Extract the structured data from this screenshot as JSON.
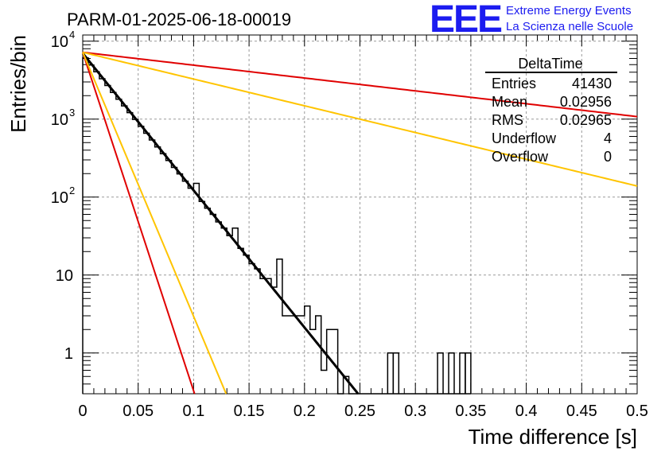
{
  "header": {
    "run_title": "PARM-01-2025-06-18-00019",
    "logo_text": "EEE",
    "logo_line1": "Extreme Energy Events",
    "logo_line2": "La Scienza nelle Scuole"
  },
  "stats_box": {
    "title": "DeltaTime",
    "rows": [
      {
        "label": "Entries",
        "value": "41430"
      },
      {
        "label": "Mean",
        "value": "0.02956"
      },
      {
        "label": "RMS",
        "value": "0.02965"
      },
      {
        "label": "Underflow",
        "value": "4"
      },
      {
        "label": "Overflow",
        "value": "0"
      }
    ]
  },
  "chart_data": {
    "type": "line",
    "title": "PARM-01-2025-06-18-00019",
    "xlabel": "Time difference [s]",
    "ylabel": "Entries/bin",
    "xlim": [
      0,
      0.5
    ],
    "ylim": [
      0.3,
      12000
    ],
    "y_scale": "log",
    "grid": true,
    "x_ticks": [
      {
        "v": 0,
        "label": "0"
      },
      {
        "v": 0.05,
        "label": "0.05"
      },
      {
        "v": 0.1,
        "label": "0.1"
      },
      {
        "v": 0.15,
        "label": "0.15"
      },
      {
        "v": 0.2,
        "label": "0.2"
      },
      {
        "v": 0.25,
        "label": "0.25"
      },
      {
        "v": 0.3,
        "label": "0.3"
      },
      {
        "v": 0.35,
        "label": "0.35"
      },
      {
        "v": 0.4,
        "label": "0.4"
      },
      {
        "v": 0.45,
        "label": "0.45"
      },
      {
        "v": 0.5,
        "label": "0.5"
      }
    ],
    "y_ticks": [
      {
        "v": 1,
        "base": "1",
        "exp": ""
      },
      {
        "v": 10,
        "base": "10",
        "exp": ""
      },
      {
        "v": 100,
        "base": "10",
        "exp": "2"
      },
      {
        "v": 1000,
        "base": "10",
        "exp": "3"
      },
      {
        "v": 10000,
        "base": "10",
        "exp": "4"
      }
    ],
    "histogram": {
      "bin_width": 0.005,
      "values": [
        6100,
        4940,
        4050,
        3300,
        2700,
        2200,
        1800,
        1480,
        1210,
        990,
        810,
        660,
        540,
        440,
        360,
        295,
        240,
        198,
        160,
        130,
        150,
        88,
        72,
        60,
        48,
        40,
        32,
        40,
        22,
        18,
        14,
        12,
        9,
        9,
        7,
        16,
        3,
        3,
        3,
        3,
        4,
        2,
        3,
        0.6,
        2,
        2,
        0.3,
        0.5,
        0.3,
        0.3,
        0.3,
        0.3,
        0.3,
        0.3,
        0.3,
        0.3,
        0.3,
        0.3,
        0.3,
        0.3,
        0.3,
        0.3,
        0.3,
        0.3,
        0.3,
        0.3,
        0.3,
        0.3,
        0.3,
        0.3
      ],
      "extra_bins": [
        {
          "x0": 0.275,
          "x1": 0.28,
          "v": 1
        },
        {
          "x0": 0.28,
          "x1": 0.285,
          "v": 1
        },
        {
          "x0": 0.32,
          "x1": 0.325,
          "v": 1
        },
        {
          "x0": 0.33,
          "x1": 0.335,
          "v": 1
        },
        {
          "x0": 0.34,
          "x1": 0.345,
          "v": 1
        },
        {
          "x0": 0.345,
          "x1": 0.35,
          "v": 1
        }
      ],
      "color": "#000000"
    },
    "series": [
      {
        "kind": "exp",
        "a": 7000,
        "slope": -40.5,
        "x_end": 0.3,
        "color": "#000000",
        "width": 3
      },
      {
        "kind": "exp",
        "a": 7200,
        "slope": -3.8,
        "x_end": 0.5,
        "color": "#e00000",
        "width": 2
      },
      {
        "kind": "exp",
        "a": 7200,
        "slope": -7.9,
        "x_end": 0.5,
        "color": "#ffc400",
        "width": 2
      },
      {
        "kind": "exp",
        "a": 7200,
        "slope": -100,
        "x_end": 0.5,
        "color": "#e00000",
        "width": 2
      },
      {
        "kind": "exp",
        "a": 7200,
        "slope": -78,
        "x_end": 0.5,
        "color": "#ffc400",
        "width": 2
      }
    ]
  }
}
